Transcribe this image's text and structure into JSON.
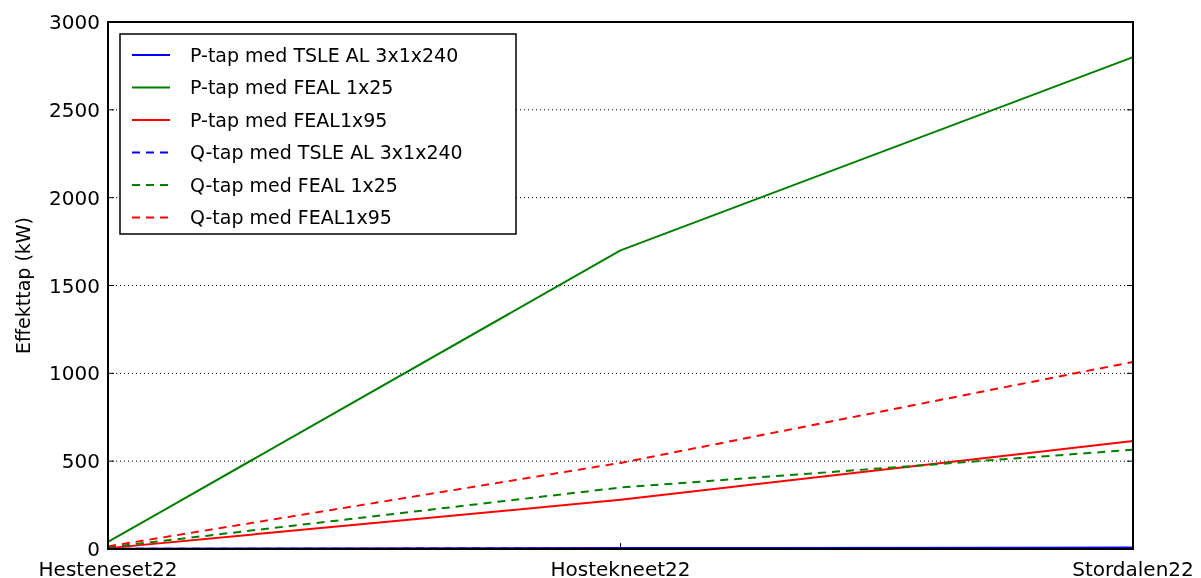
{
  "chart_data": {
    "type": "line",
    "ylabel": "Effekttap (kW)",
    "categories": [
      "Hesteneset22",
      "Hostekneet22",
      "Stordalen22"
    ],
    "ylim": [
      0,
      3000
    ],
    "yticks": [
      0,
      500,
      1000,
      1500,
      2000,
      2500,
      3000
    ],
    "grid": "y",
    "legend": "top left",
    "series": [
      {
        "name": "P-tap med TSLE AL 3x1x240",
        "color": "#0000ff",
        "values": [
          2,
          5,
          8
        ],
        "line_style": "solid"
      },
      {
        "name": "P-tap med FEAL 1x25",
        "color": "#008000",
        "values": [
          40,
          1700,
          2800
        ],
        "line_style": "solid"
      },
      {
        "name": "P-tap med FEAL1x95",
        "color": "#ff0000",
        "values": [
          5,
          280,
          615
        ],
        "line_style": "solid"
      },
      {
        "name": "Q-tap med TSLE AL 3x1x240",
        "color": "#0000ff",
        "values": [
          1,
          3,
          5
        ],
        "line_style": "dashed"
      },
      {
        "name": "Q-tap med FEAL 1x25",
        "color": "#008000",
        "values": [
          10,
          350,
          565
        ],
        "line_style": "dashed"
      },
      {
        "name": "Q-tap med FEAL1x95",
        "color": "#ff0000",
        "values": [
          15,
          490,
          1065
        ],
        "line_style": "dashed"
      }
    ]
  }
}
